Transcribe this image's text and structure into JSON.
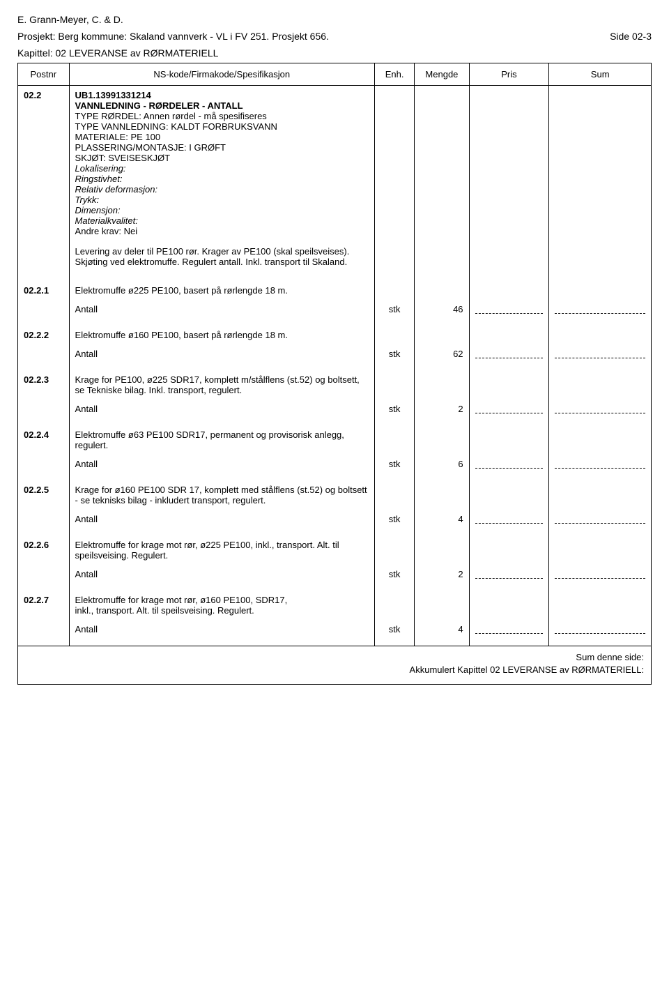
{
  "header": {
    "author": "E. Grann-Meyer, C. & D.",
    "project": "Prosjekt: Berg kommune: Skaland vannverk - VL i FV 251. Prosjekt 656.",
    "page": "Side 02-3",
    "chapter": "Kapittel: 02 LEVERANSE av RØRMATERIELL"
  },
  "columns": {
    "postnr": "Postnr",
    "spec": "NS-kode/Firmakode/Spesifikasjon",
    "enh": "Enh.",
    "mengde": "Mengde",
    "pris": "Pris",
    "sum": "Sum"
  },
  "main": {
    "postnr": "02.2",
    "code": "UB1.13991331214",
    "title": "VANNLEDNING - RØRDELER - ANTALL",
    "lines": [
      "TYPE RØRDEL: Annen rørdel - må spesifiseres",
      "TYPE VANNLEDNING: KALDT FORBRUKSVANN",
      "MATERIALE: PE 100",
      "PLASSERING/MONTASJE: I GRØFT",
      "SKJØT: SVEISESKJØT"
    ],
    "italic_lines": [
      "Lokalisering:",
      "Ringstivhet:",
      "Relativ deformasjon:",
      "Trykk:",
      "Dimensjon:",
      "Materialkvalitet:"
    ],
    "andre_krav": "Andre krav: Nei",
    "note": "Levering av deler til PE100 rør. Krager av PE100 (skal speilsveises). Skjøting ved elektromuffe. Regulert antall. Inkl. transport til Skaland."
  },
  "antall_label": "Antall",
  "unit": "stk",
  "items": [
    {
      "postnr": "02.2.1",
      "desc": "Elektromuffe ø225 PE100, basert på rørlengde 18 m.",
      "qty": "46"
    },
    {
      "postnr": "02.2.2",
      "desc": "Elektromuffe ø160 PE100, basert på rørlengde 18 m.",
      "qty": "62"
    },
    {
      "postnr": "02.2.3",
      "desc": "Krage for PE100, ø225 SDR17, komplett m/stålflens (st.52) og boltsett, se Tekniske bilag. Inkl. transport, regulert.",
      "qty": "2"
    },
    {
      "postnr": "02.2.4",
      "desc": "Elektromuffe ø63 PE100 SDR17, permanent og provisorisk anlegg, regulert.",
      "qty": "6"
    },
    {
      "postnr": "02.2.5",
      "desc": "Krage for ø160 PE100 SDR 17, komplett med stålflens (st.52) og boltsett - se teknisks bilag - inkludert transport, regulert.",
      "qty": "4"
    },
    {
      "postnr": "02.2.6",
      "desc": "Elektromuffe for krage mot rør, ø225 PE100, inkl., transport. Alt. til speilsveising. Regulert.",
      "qty": "2"
    },
    {
      "postnr": "02.2.7",
      "desc": "Elektromuffe for krage mot rør, ø160 PE100, SDR17,\ninkl., transport. Alt. til speilsveising. Regulert.",
      "qty": "4"
    }
  ],
  "footer": {
    "sum_side": "Sum denne side:",
    "akkum": "Akkumulert Kapittel 02 LEVERANSE av RØRMATERIELL:"
  },
  "style": {
    "bg": "#ffffff",
    "text": "#000000",
    "border": "#000000",
    "font_size_body": 13,
    "font_size_header": 14
  }
}
